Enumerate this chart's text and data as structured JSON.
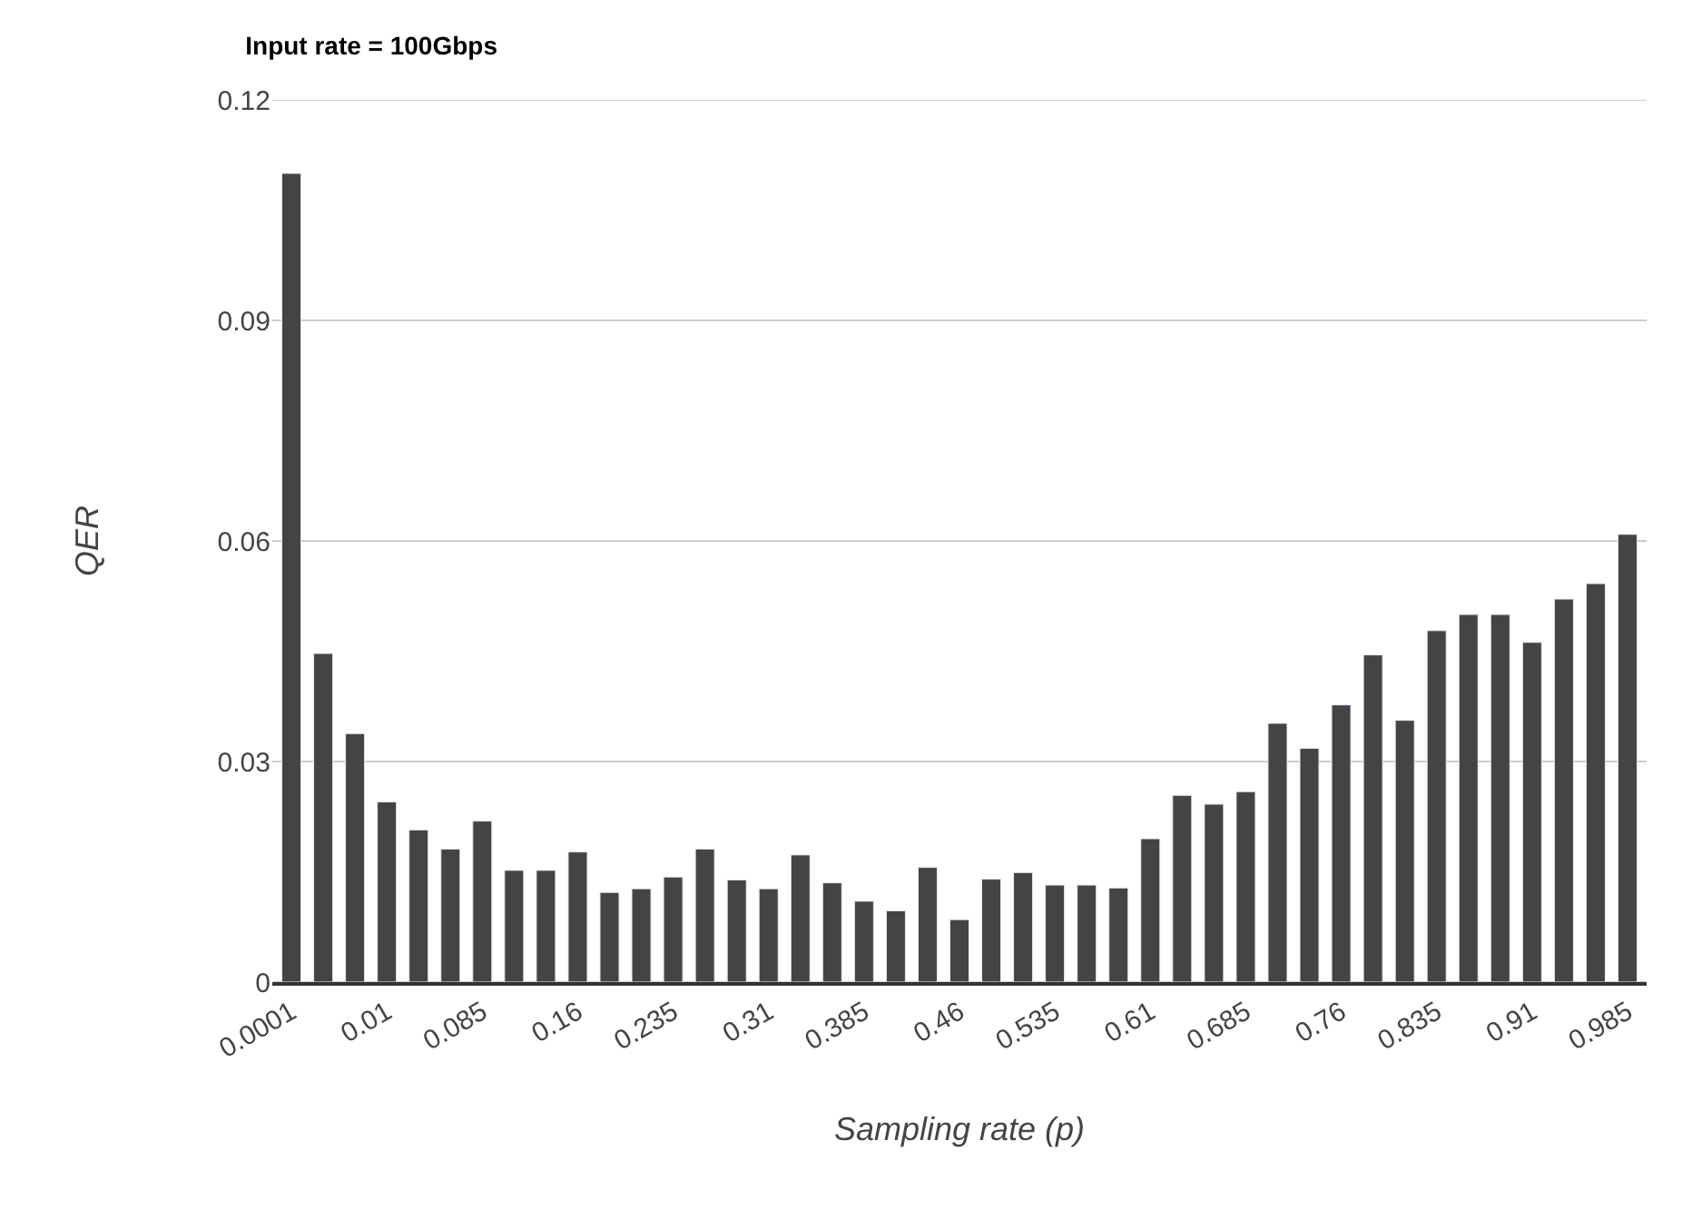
{
  "chart_data": {
    "type": "bar",
    "title": "Input rate = 100Gbps",
    "xlabel": "Sampling rate (p)",
    "ylabel": "QER",
    "categories": [
      "0.0001",
      null,
      null,
      "0.01",
      null,
      null,
      "0.085",
      null,
      null,
      "0.16",
      null,
      null,
      "0.235",
      null,
      null,
      "0.31",
      null,
      null,
      "0.385",
      null,
      null,
      "0.46",
      null,
      null,
      "0.535",
      null,
      null,
      "0.61",
      null,
      null,
      "0.685",
      null,
      null,
      "0.76",
      null,
      null,
      "0.835",
      null,
      null,
      "0.91",
      null,
      null,
      "0.985"
    ],
    "values": [
      0.11,
      0.0447,
      0.0338,
      0.0245,
      0.0207,
      0.0181,
      0.0219,
      0.0152,
      0.0152,
      0.0177,
      0.0122,
      0.0127,
      0.0143,
      0.0181,
      0.0139,
      0.0127,
      0.0173,
      0.0135,
      0.011,
      0.0097,
      0.0156,
      0.0085,
      0.014,
      0.0149,
      0.0132,
      0.0132,
      0.0128,
      0.0195,
      0.0254,
      0.0242,
      0.0259,
      0.0352,
      0.0318,
      0.0377,
      0.0445,
      0.0356,
      0.0478,
      0.05,
      0.05,
      0.0462,
      0.0521,
      0.0542,
      0.0609
    ],
    "color": "#444444",
    "ylim": [
      0,
      0.12
    ],
    "yticks": [
      0,
      0.03,
      0.06,
      0.09,
      0.12
    ],
    "grid": "y"
  }
}
